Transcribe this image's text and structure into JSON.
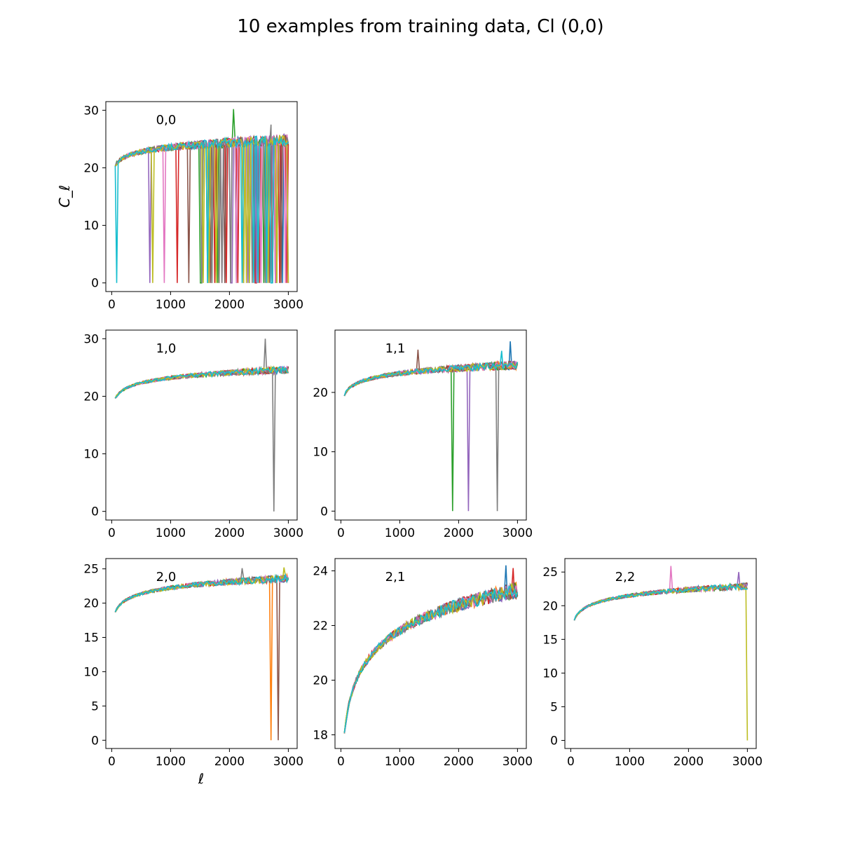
{
  "figure": {
    "title": "10 examples from training data, Cl (0,0)"
  },
  "palette": [
    "#1f77b4",
    "#ff7f0e",
    "#2ca02c",
    "#d62728",
    "#9467bd",
    "#8c564b",
    "#e377c2",
    "#7f7f7f",
    "#bcbd22",
    "#17becf"
  ],
  "chart_data": [
    {
      "type": "line",
      "panel": "0,0",
      "label": "0,0",
      "xlim": [
        -100,
        3150
      ],
      "ylim": [
        -1.5,
        31.5
      ],
      "xticks": [
        0,
        1000,
        2000,
        3000
      ],
      "yticks": [
        0,
        10,
        20,
        30
      ],
      "ylabel": "C_ℓ",
      "xlabel": "",
      "curve": {
        "a": 20.4,
        "b": 24.8,
        "l0": 60,
        "l1": 3000,
        "noise": 0.9
      },
      "dropouts": [
        [
          0,
          1700
        ],
        [
          1,
          1820
        ],
        [
          2,
          1500
        ],
        [
          3,
          1120
        ],
        [
          4,
          640
        ],
        [
          5,
          1300
        ],
        [
          6,
          900
        ],
        [
          7,
          2620
        ],
        [
          8,
          700
        ],
        [
          9,
          80
        ]
      ],
      "spikes": [
        [
          2,
          2060,
          30.2
        ],
        [
          7,
          2700,
          27.5
        ],
        [
          4,
          650,
          26.7
        ]
      ],
      "note": "Dense dropouts to 0 across 1500-3000 for all series"
    },
    {
      "type": "line",
      "panel": "1,0",
      "label": "1,0",
      "xlim": [
        -100,
        3150
      ],
      "ylim": [
        -1.5,
        31.5
      ],
      "xticks": [
        0,
        1000,
        2000,
        3000
      ],
      "yticks": [
        0,
        10,
        20,
        30
      ],
      "curve": {
        "a": 19.6,
        "b": 24.6,
        "l0": 60,
        "l1": 3000,
        "noise": 0.5
      },
      "dropouts": [
        [
          7,
          2760
        ]
      ],
      "spikes": [
        [
          7,
          2610,
          30.0
        ]
      ]
    },
    {
      "type": "line",
      "panel": "1,1",
      "label": "1,1",
      "xlim": [
        -100,
        3150
      ],
      "ylim": [
        -1.5,
        30.5
      ],
      "xticks": [
        0,
        1000,
        2000,
        3000
      ],
      "yticks": [
        0,
        10,
        20
      ],
      "curve": {
        "a": 19.6,
        "b": 24.6,
        "l0": 60,
        "l1": 3000,
        "noise": 0.6
      },
      "dropouts": [
        [
          2,
          1900
        ],
        [
          4,
          2160
        ],
        [
          7,
          2650
        ]
      ],
      "spikes": [
        [
          5,
          1320,
          27.2
        ],
        [
          0,
          2870,
          28.6
        ],
        [
          9,
          2740,
          27.0
        ]
      ]
    },
    {
      "type": "line",
      "panel": "2,0",
      "label": "2,0",
      "xlim": [
        -100,
        3150
      ],
      "ylim": [
        -1.2,
        26.5
      ],
      "xticks": [
        0,
        1000,
        2000,
        3000
      ],
      "yticks": [
        0,
        5,
        10,
        15,
        20,
        25
      ],
      "xlabel": "ℓ",
      "curve": {
        "a": 18.7,
        "b": 23.6,
        "l0": 60,
        "l1": 3000,
        "noise": 0.45
      },
      "dropouts": [
        [
          1,
          2700
        ],
        [
          5,
          2820
        ]
      ],
      "spikes": [
        [
          7,
          2220,
          25.1
        ],
        [
          8,
          2920,
          25.2
        ]
      ]
    },
    {
      "type": "line",
      "panel": "2,1",
      "label": "2,1",
      "xlim": [
        -100,
        3150
      ],
      "ylim": [
        17.5,
        24.45
      ],
      "xticks": [
        0,
        1000,
        2000,
        3000
      ],
      "yticks": [
        18,
        20,
        22,
        24
      ],
      "curve": {
        "a": 18.0,
        "b": 23.3,
        "l0": 60,
        "l1": 3000,
        "noise": 0.25
      },
      "dropouts": [],
      "spikes": [
        [
          0,
          2810,
          24.2
        ],
        [
          3,
          2930,
          24.1
        ]
      ]
    },
    {
      "type": "line",
      "panel": "2,2",
      "label": "2,2",
      "xlim": [
        -100,
        3150
      ],
      "ylim": [
        -1.2,
        27.0
      ],
      "xticks": [
        0,
        1000,
        2000,
        3000
      ],
      "yticks": [
        0,
        5,
        10,
        15,
        20,
        25
      ],
      "curve": {
        "a": 17.9,
        "b": 22.9,
        "l0": 60,
        "l1": 3000,
        "noise": 0.4
      },
      "dropouts": [
        [
          8,
          2990
        ]
      ],
      "spikes": [
        [
          6,
          1690,
          25.9
        ],
        [
          4,
          2850,
          25.0
        ]
      ]
    }
  ]
}
